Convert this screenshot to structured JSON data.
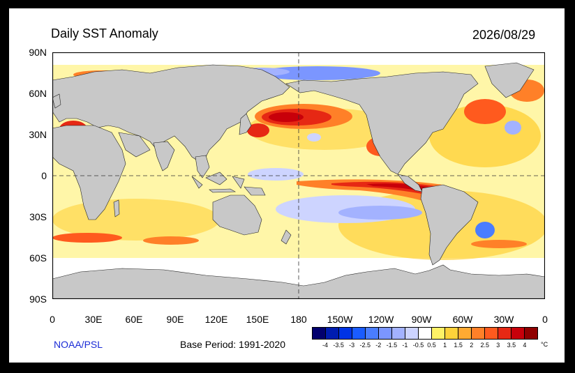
{
  "title": "Daily SST Anomaly",
  "date": "2026/08/29",
  "credit": "NOAA/PSL",
  "base_period": "Base Period: 1991-2020",
  "lat_labels": [
    "90N",
    "60N",
    "30N",
    "0",
    "30S",
    "60S",
    "90S"
  ],
  "lon_labels": [
    "0",
    "30E",
    "60E",
    "90E",
    "120E",
    "150E",
    "180",
    "150W",
    "120W",
    "90W",
    "60W",
    "30W",
    "0"
  ],
  "colorbar": {
    "unit": "°C",
    "labels": [
      "-4",
      "-3.5",
      "-3",
      "-2.5",
      "-2",
      "-1.5",
      "-1",
      "-0.5",
      "0.5",
      "1",
      "1.5",
      "2",
      "2.5",
      "3",
      "3.5",
      "4"
    ],
    "colors": [
      "#02006e",
      "#001cb0",
      "#0033e6",
      "#1a5cff",
      "#4a7dff",
      "#7b96ff",
      "#a3b2ff",
      "#cdd4ff",
      "#ffffff",
      "#fff266",
      "#ffd23a",
      "#ffaa32",
      "#ff8028",
      "#ff5a1e",
      "#e62814",
      "#c8000a",
      "#900000"
    ]
  },
  "land_color": "#c8c8c8"
}
